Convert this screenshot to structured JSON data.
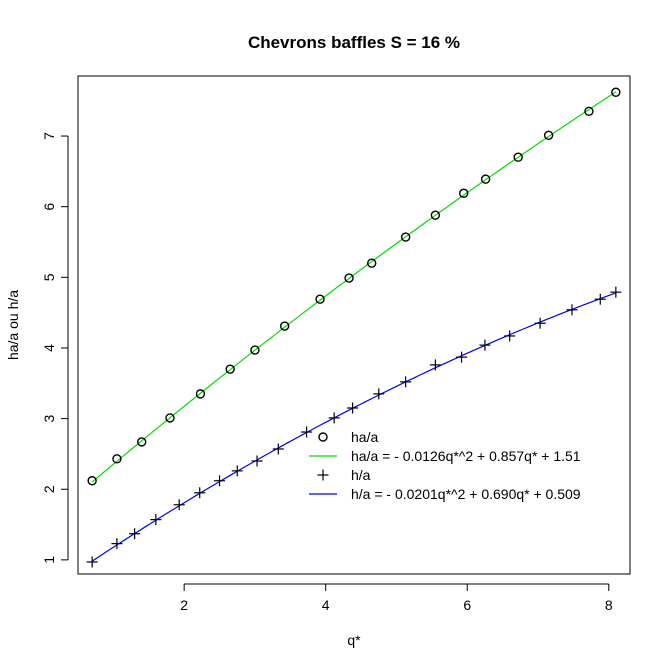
{
  "chart_data": {
    "type": "scatter",
    "title": "Chevrons baffles S = 16 %",
    "xlabel": "q*",
    "ylabel": "ha/a ou h/a",
    "xlim": [
      0.5,
      8.3
    ],
    "ylim": [
      0.8,
      7.85
    ],
    "xticks": [
      2,
      4,
      6,
      8
    ],
    "yticks": [
      1,
      2,
      3,
      4,
      5,
      6,
      7
    ],
    "grid": false,
    "legend_position": "bottom-right",
    "series": [
      {
        "name": "ha/a",
        "marker": "circle",
        "color": "#000000",
        "x": [
          0.7,
          1.05,
          1.4,
          1.8,
          2.23,
          2.65,
          3.0,
          3.42,
          3.92,
          4.33,
          4.65,
          5.13,
          5.55,
          5.95,
          6.26,
          6.72,
          7.15,
          7.72,
          8.1
        ],
        "y": [
          2.12,
          2.43,
          2.67,
          3.01,
          3.35,
          3.7,
          3.97,
          4.31,
          4.69,
          4.99,
          5.2,
          5.57,
          5.88,
          6.19,
          6.39,
          6.7,
          7.01,
          7.35,
          7.62
        ]
      },
      {
        "name": "h/a",
        "marker": "plus",
        "color": "#000000",
        "x": [
          0.7,
          1.05,
          1.3,
          1.6,
          1.93,
          2.22,
          2.5,
          2.75,
          3.03,
          3.33,
          3.73,
          4.12,
          4.38,
          4.75,
          5.13,
          5.55,
          5.92,
          6.25,
          6.6,
          7.03,
          7.48,
          7.88,
          8.1
        ],
        "y": [
          0.97,
          1.23,
          1.37,
          1.57,
          1.78,
          1.95,
          2.12,
          2.26,
          2.4,
          2.57,
          2.81,
          3.01,
          3.15,
          3.35,
          3.52,
          3.76,
          3.87,
          4.04,
          4.17,
          4.35,
          4.54,
          4.69,
          4.79
        ]
      }
    ],
    "fits": [
      {
        "name": "ha/a = - 0.0126q*^2 + 0.857q* + 1.51",
        "color": "#00dd00",
        "a": -0.0126,
        "b": 0.857,
        "c": 1.51,
        "x_range": [
          0.7,
          8.1
        ]
      },
      {
        "name": "h/a = - 0.0201q*^2 + 0.690q* + 0.509",
        "color": "#0000ff",
        "a": -0.0201,
        "b": 0.69,
        "c": 0.509,
        "x_range": [
          0.7,
          8.1
        ]
      }
    ],
    "legend": [
      {
        "label": "ha/a",
        "symbol": "circle",
        "color": "#000000"
      },
      {
        "label": "ha/a = - 0.0126q*^2 + 0.857q* + 1.51",
        "symbol": "line",
        "color": "#00dd00"
      },
      {
        "label": "h/a",
        "symbol": "plus",
        "color": "#000000"
      },
      {
        "label": "h/a = - 0.0201q*^2 + 0.690q* + 0.509",
        "symbol": "line",
        "color": "#0000ff"
      }
    ]
  }
}
